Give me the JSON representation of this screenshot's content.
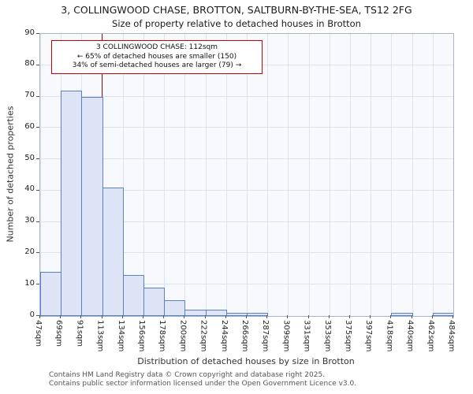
{
  "title": "3, COLLINGWOOD CHASE, BROTTON, SALTBURN-BY-THE-SEA, TS12 2FG",
  "subtitle": "Size of property relative to detached houses in Brotton",
  "chart_data": {
    "type": "bar",
    "categories": [
      "47sqm",
      "69sqm",
      "91sqm",
      "113sqm",
      "134sqm",
      "156sqm",
      "178sqm",
      "200sqm",
      "222sqm",
      "244sqm",
      "266sqm",
      "287sqm",
      "309sqm",
      "331sqm",
      "353sqm",
      "375sqm",
      "397sqm",
      "418sqm",
      "440sqm",
      "462sqm",
      "484sqm"
    ],
    "values": [
      14,
      72,
      70,
      41,
      13,
      9,
      5,
      2,
      2,
      1,
      1,
      0,
      0,
      0,
      0,
      0,
      0,
      1,
      0,
      1
    ],
    "title": "Size of property relative to detached houses in Brotton",
    "xlabel": "Distribution of detached houses by size in Brotton",
    "ylabel": "Number of detached properties",
    "ylim": [
      0,
      90
    ],
    "yticks": [
      0,
      10,
      20,
      30,
      40,
      50,
      60,
      70,
      80,
      90
    ],
    "x_range_sqm": [
      47,
      484
    ],
    "grid": true,
    "legend": "none",
    "marker": {
      "value_sqm": 112,
      "label_lines": [
        "3 COLLINGWOOD CHASE: 112sqm",
        "← 65% of detached houses are smaller (150)",
        "34% of semi-detached houses are larger (79) →"
      ]
    },
    "colors": {
      "bar_fill": "#dce4f5",
      "bar_border": "#5b7fc0",
      "marker_line": "#8b1a1a",
      "annotation_border": "#cc0000",
      "grid": "#dbe2f0"
    }
  },
  "footer": {
    "line1": "Contains HM Land Registry data © Crown copyright and database right 2025.",
    "line2": "Contains public sector information licensed under the Open Government Licence v3.0."
  }
}
